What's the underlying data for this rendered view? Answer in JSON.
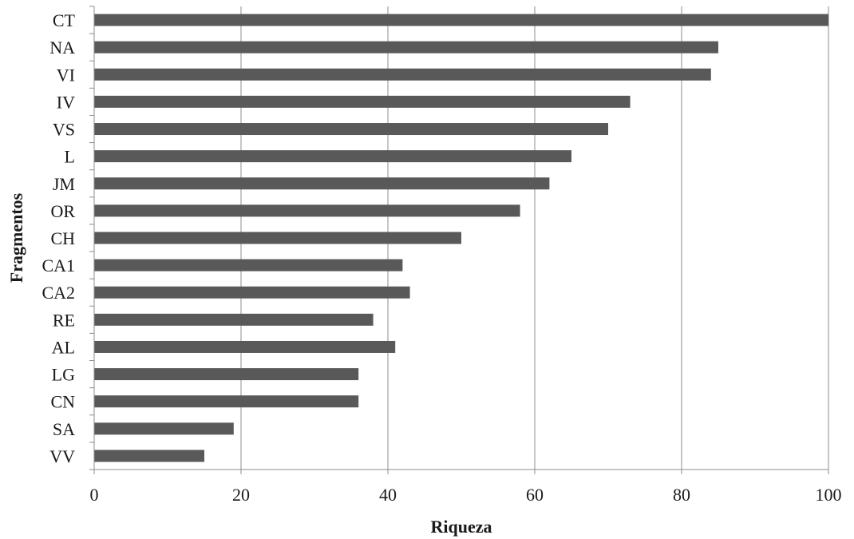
{
  "chart_data": {
    "type": "bar",
    "orientation": "horizontal",
    "title": "",
    "xlabel": "Riqueza",
    "ylabel": "Fragmentos",
    "xlim": [
      0,
      100
    ],
    "xticks": [
      0,
      20,
      40,
      60,
      80,
      100
    ],
    "grid": "vertical",
    "legend": "none",
    "bar_color": "#595959",
    "categories": [
      "CT",
      "NA",
      "VI",
      "IV",
      "VS",
      "L",
      "JM",
      "OR",
      "CH",
      "CA1",
      "CA2",
      "RE",
      "AL",
      "LG",
      "CN",
      "SA",
      "VV"
    ],
    "values": [
      100,
      85,
      84,
      73,
      70,
      65,
      62,
      58,
      50,
      42,
      43,
      38,
      41,
      36,
      36,
      19,
      15
    ]
  }
}
